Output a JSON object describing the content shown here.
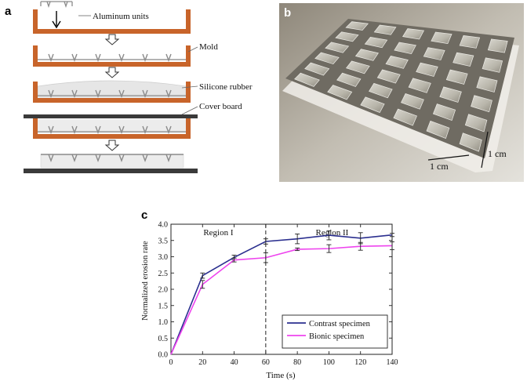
{
  "figure": {
    "panel_a": {
      "label": "a",
      "step_labels": [
        "Aluminum units",
        "Mold",
        "Silicone rubber",
        "Cover board"
      ],
      "colors": {
        "mold": "#c8642a",
        "rubber": "#e6e6e6",
        "board": "#3a3a3a",
        "units": "#9a9a9a"
      }
    },
    "panel_b": {
      "label": "b",
      "dimension_labels": [
        "1 cm",
        "1 cm"
      ]
    },
    "panel_c": {
      "label": "c"
    }
  },
  "chart_data": {
    "type": "line",
    "xlabel": "Time (s)",
    "ylabel": "Normalized erosion rate",
    "xlim": [
      0,
      140
    ],
    "ylim": [
      0.0,
      4.0
    ],
    "xticks": [
      0,
      20,
      40,
      60,
      80,
      100,
      120,
      140
    ],
    "yticks": [
      "0.0",
      "0.5",
      "1.0",
      "1.5",
      "2.0",
      "2.5",
      "3.0",
      "3.5",
      "4.0"
    ],
    "region_divider_x": 60,
    "region_labels": [
      "Region I",
      "Region II"
    ],
    "legend_position": "bottom-right",
    "series": [
      {
        "name": "Contrast specimen",
        "color": "#2b2f8f",
        "x": [
          0,
          20,
          40,
          60,
          80,
          100,
          120,
          140
        ],
        "y": [
          0.0,
          2.42,
          2.98,
          3.47,
          3.55,
          3.66,
          3.57,
          3.67
        ],
        "err": [
          0,
          0.08,
          0.07,
          0.08,
          0.15,
          0.14,
          0.17,
          0.05
        ]
      },
      {
        "name": "Bionic specimen",
        "color": "#ee44ee",
        "x": [
          0,
          20,
          40,
          60,
          80,
          100,
          120,
          140
        ],
        "y": [
          0.0,
          2.15,
          2.9,
          2.97,
          3.23,
          3.25,
          3.32,
          3.34
        ],
        "err": [
          0,
          0.12,
          0.06,
          0.15,
          0.04,
          0.12,
          0.12,
          0.12
        ]
      }
    ]
  }
}
